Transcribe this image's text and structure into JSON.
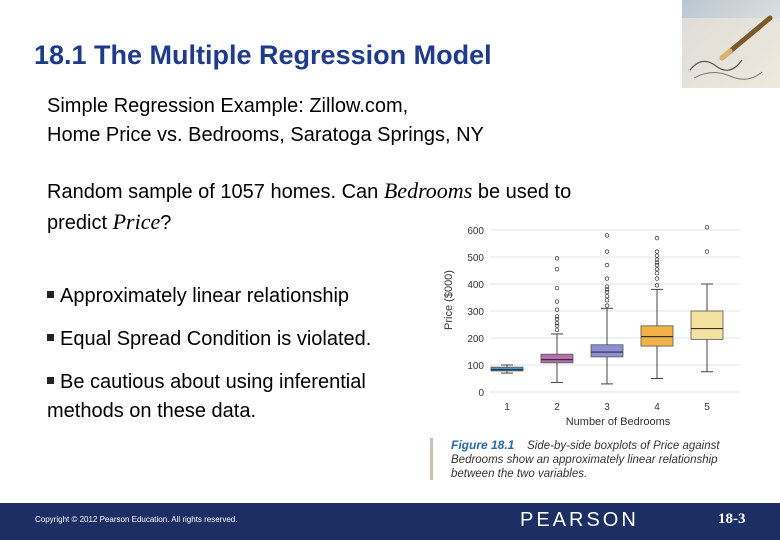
{
  "slide": {
    "title": "18.1 The Multiple Regression Model",
    "subtitle_line1": "Simple Regression Example: Zillow.com,",
    "subtitle_line2": "Home Price vs. Bedrooms, Saratoga Springs, NY",
    "question_part1": "Random sample of 1057 homes. Can ",
    "question_var1": "Bedrooms",
    "question_part2": " be used to",
    "question_part3": "predict ",
    "question_var2": "Price",
    "question_part4": "?",
    "bullets": [
      "Approximately linear relationship",
      "Equal Spread Condition is violated.",
      "Be cautious about using inferential",
      "methods on these data."
    ]
  },
  "caption": {
    "figure_label": "Figure 18.1",
    "text_line1": "Side-by-side boxplots of Price against",
    "text_line2": "Bedrooms show an approximately linear relationship",
    "text_line3": "between the two variables."
  },
  "footer": {
    "copyright": "Copyright © 2012 Pearson Education. All rights reserved.",
    "brand": "PEARSON",
    "slide_number": "18-3"
  },
  "colors": {
    "title": "#1f3b8c",
    "footer_bg": "#1c2e63",
    "box_1": "#3aa0d8",
    "box_2": "#b86fb0",
    "box_3": "#8d8fd6",
    "box_4": "#f2b24a",
    "box_5": "#f4e2a0"
  },
  "chart_data": {
    "type": "boxplot",
    "xlabel": "Number of Bedrooms",
    "ylabel": "Price ($000)",
    "ylim": [
      0,
      600
    ],
    "yticks": [
      0,
      100,
      200,
      300,
      400,
      500,
      600
    ],
    "categories": [
      "1",
      "2",
      "3",
      "4",
      "5"
    ],
    "boxes": [
      {
        "category": "1",
        "whisker_low": 70,
        "q1": 78,
        "median": 83,
        "q3": 92,
        "whisker_high": 100,
        "outliers": []
      },
      {
        "category": "2",
        "whisker_low": 35,
        "q1": 108,
        "median": 120,
        "q3": 140,
        "whisker_high": 215,
        "outliers": [
          230,
          245,
          255,
          270,
          280,
          305,
          335,
          385,
          455,
          495
        ]
      },
      {
        "category": "3",
        "whisker_low": 30,
        "q1": 130,
        "median": 148,
        "q3": 175,
        "whisker_high": 310,
        "outliers": [
          320,
          340,
          355,
          370,
          380,
          390,
          420,
          470,
          520,
          580
        ]
      },
      {
        "category": "4",
        "whisker_low": 50,
        "q1": 170,
        "median": 205,
        "q3": 245,
        "whisker_high": 380,
        "outliers": [
          395,
          420,
          440,
          455,
          470,
          480,
          490,
          505,
          520,
          570
        ]
      },
      {
        "category": "5",
        "whisker_low": 75,
        "q1": 195,
        "median": 235,
        "q3": 300,
        "whisker_high": 400,
        "outliers": [
          520,
          610
        ]
      }
    ]
  }
}
